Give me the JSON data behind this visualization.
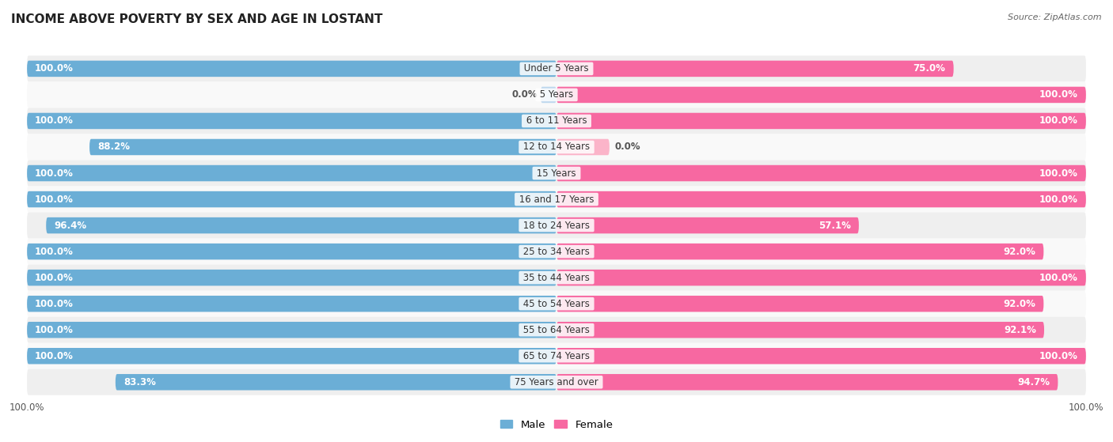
{
  "title": "INCOME ABOVE POVERTY BY SEX AND AGE IN LOSTANT",
  "source": "Source: ZipAtlas.com",
  "categories": [
    "Under 5 Years",
    "5 Years",
    "6 to 11 Years",
    "12 to 14 Years",
    "15 Years",
    "16 and 17 Years",
    "18 to 24 Years",
    "25 to 34 Years",
    "35 to 44 Years",
    "45 to 54 Years",
    "55 to 64 Years",
    "65 to 74 Years",
    "75 Years and over"
  ],
  "male_values": [
    100.0,
    0.0,
    100.0,
    88.2,
    100.0,
    100.0,
    96.4,
    100.0,
    100.0,
    100.0,
    100.0,
    100.0,
    83.3
  ],
  "female_values": [
    75.0,
    100.0,
    100.0,
    0.0,
    100.0,
    100.0,
    57.1,
    92.0,
    100.0,
    92.0,
    92.1,
    100.0,
    94.7
  ],
  "male_color": "#6baed6",
  "female_color": "#f768a1",
  "male_color_light": "#bdd7ee",
  "female_color_light": "#fbb4c9",
  "background_color": "#ffffff",
  "row_alt_color": "#efefef",
  "row_main_color": "#f9f9f9",
  "bar_height": 0.62,
  "title_fontsize": 11,
  "label_fontsize": 8.5,
  "value_fontsize": 8.5,
  "legend_fontsize": 9.5,
  "axis_label_fontsize": 8.5
}
